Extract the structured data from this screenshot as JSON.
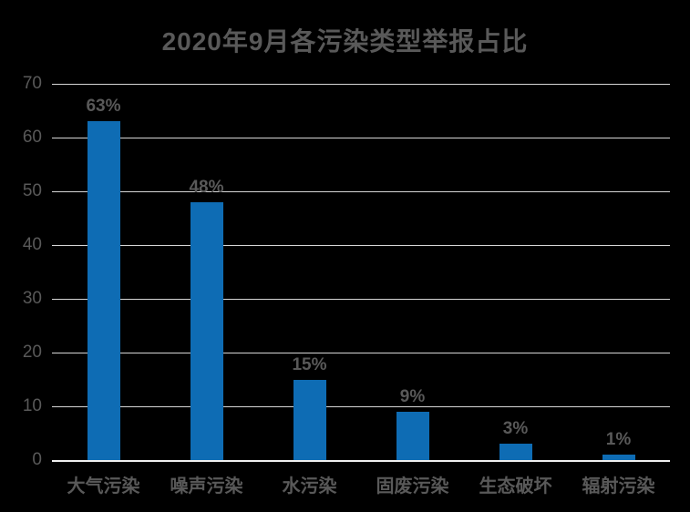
{
  "colors": {
    "background": "#000000",
    "bar": "#0E6CB4",
    "text": "#595959",
    "gridline": "#D6D6D6",
    "axis_line": "#F0F0F0"
  },
  "chart_data": {
    "type": "bar",
    "title": "2020年9月各污染类型举报占比",
    "categories": [
      "大气污染",
      "噪声污染",
      "水污染",
      "固废污染",
      "生态破坏",
      "辐射污染"
    ],
    "values": [
      63,
      48,
      15,
      9,
      3,
      1
    ],
    "value_labels": [
      "63%",
      "48%",
      "15%",
      "9%",
      "3%",
      "1%"
    ],
    "xlabel": "",
    "ylabel": "",
    "ylim": [
      0,
      70
    ],
    "yticks": [
      0,
      10,
      20,
      30,
      40,
      50,
      60,
      70
    ],
    "grid": true,
    "legend": false
  }
}
